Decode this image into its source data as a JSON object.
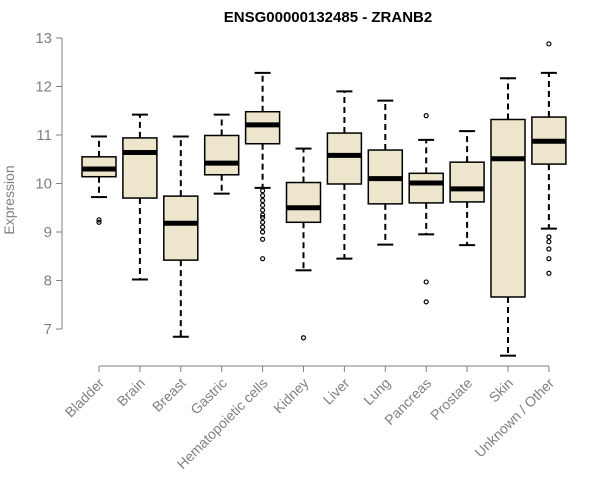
{
  "chart_data": {
    "type": "box",
    "title": "ENSG00000132485 - ZRANB2",
    "xlabel": "",
    "ylabel": "Expression",
    "ylim": [
      6.6,
      13.1
    ],
    "yticks": [
      7,
      8,
      9,
      10,
      11,
      12,
      13
    ],
    "grid": false,
    "colors": {
      "box_fill": "#ede6cd",
      "stroke": "#000000",
      "axis": "#808080"
    },
    "categories": [
      "Bladder",
      "Brain",
      "Breast",
      "Gastric",
      "Hematopoietic cells",
      "Kidney",
      "Liver",
      "Lung",
      "Pancreas",
      "Prostate",
      "Skin",
      "Unknown / Other"
    ],
    "boxes": [
      {
        "whisker_low": 9.72,
        "q1": 10.14,
        "median": 10.3,
        "q3": 10.55,
        "whisker_high": 10.97,
        "outliers": [
          9.2,
          9.25
        ]
      },
      {
        "whisker_low": 8.02,
        "q1": 9.7,
        "median": 10.64,
        "q3": 10.94,
        "whisker_high": 11.42,
        "outliers": []
      },
      {
        "whisker_low": 6.84,
        "q1": 8.42,
        "median": 9.18,
        "q3": 9.74,
        "whisker_high": 10.97,
        "outliers": []
      },
      {
        "whisker_low": 9.79,
        "q1": 10.18,
        "median": 10.42,
        "q3": 10.99,
        "whisker_high": 11.42,
        "outliers": []
      },
      {
        "whisker_low": 9.91,
        "q1": 10.82,
        "median": 11.21,
        "q3": 11.48,
        "whisker_high": 12.28,
        "outliers": [
          9.85,
          9.75,
          9.65,
          9.55,
          9.45,
          9.35,
          9.3,
          9.2,
          9.1,
          9.0,
          8.85,
          8.45
        ]
      },
      {
        "whisker_low": 8.21,
        "q1": 9.2,
        "median": 9.5,
        "q3": 10.02,
        "whisker_high": 10.72,
        "outliers": [
          6.82
        ]
      },
      {
        "whisker_low": 8.45,
        "q1": 9.99,
        "median": 10.58,
        "q3": 11.04,
        "whisker_high": 11.9,
        "outliers": []
      },
      {
        "whisker_low": 8.74,
        "q1": 9.58,
        "median": 10.1,
        "q3": 10.69,
        "whisker_high": 11.71,
        "outliers": []
      },
      {
        "whisker_low": 8.95,
        "q1": 9.6,
        "median": 10.01,
        "q3": 10.21,
        "whisker_high": 10.9,
        "outliers": [
          11.4,
          7.97,
          7.56
        ]
      },
      {
        "whisker_low": 8.73,
        "q1": 9.62,
        "median": 9.89,
        "q3": 10.44,
        "whisker_high": 11.08,
        "outliers": []
      },
      {
        "whisker_low": 6.45,
        "q1": 7.66,
        "median": 10.51,
        "q3": 11.32,
        "whisker_high": 12.17,
        "outliers": []
      },
      {
        "whisker_low": 9.07,
        "q1": 10.4,
        "median": 10.87,
        "q3": 11.37,
        "whisker_high": 12.28,
        "outliers": [
          12.88,
          8.9,
          8.8,
          8.65,
          8.45,
          8.15
        ]
      }
    ]
  }
}
